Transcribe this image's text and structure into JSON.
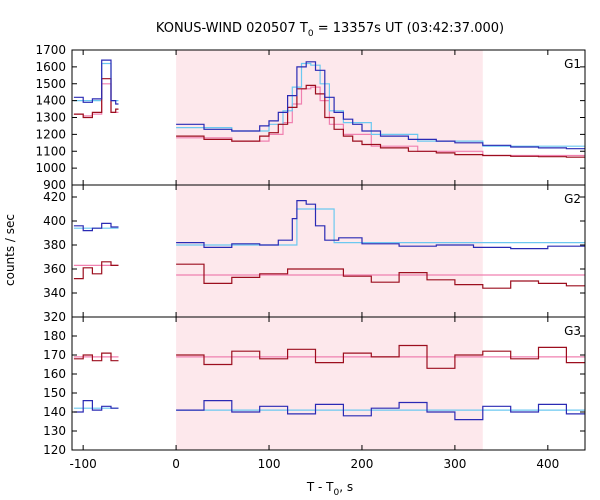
{
  "chart_data": {
    "type": "line",
    "title_main": "KONUS-WIND 020507 T",
    "title_sub": "0",
    "title_rest": " = 13357s UT (03:42:37.000)",
    "xlabel_main": "T - T",
    "xlabel_sub": "0",
    "xlabel_rest": ", s",
    "ylabel": "counts / sec",
    "xlim": [
      -112,
      440
    ],
    "x_ticks": [
      -100,
      0,
      100,
      200,
      300,
      400
    ],
    "x_tick_labels": [
      "-100",
      "0",
      "100",
      "200",
      "300",
      "400"
    ],
    "shaded_interval": [
      0,
      330
    ],
    "colors": {
      "shade": "#fde8ec",
      "observed_blue": "#2a2ab4",
      "observed_red": "#9c0e1e",
      "model_cyan": "#6cc8f0",
      "model_pink": "#f080b0"
    },
    "panels": [
      {
        "label": "G1",
        "ylim": [
          900,
          1700
        ],
        "y_ticks": [
          900,
          1000,
          1100,
          1200,
          1300,
          1400,
          1500,
          1600,
          1700
        ],
        "y_tick_labels": [
          "900",
          "1000",
          "1100",
          "1200",
          "1300",
          "1400",
          "1500",
          "1600",
          "1700"
        ],
        "blue": {
          "segments": [
            {
              "x": [
                -110,
                -100,
                -90,
                -80,
                -70,
                -65,
                -62
              ],
              "y": [
                1420,
                1390,
                1410,
                1640,
                1400,
                1380,
                1370
              ]
            },
            {
              "x": [
                0,
                30,
                60,
                90,
                100,
                110,
                120,
                130,
                140,
                150,
                160,
                170,
                180,
                190,
                200,
                220,
                250,
                280,
                300,
                330,
                360,
                390,
                420,
                440
              ],
              "y": [
                1260,
                1230,
                1220,
                1250,
                1280,
                1330,
                1430,
                1600,
                1630,
                1580,
                1420,
                1330,
                1290,
                1260,
                1220,
                1190,
                1170,
                1160,
                1150,
                1135,
                1125,
                1120,
                1115,
                1110
              ]
            }
          ]
        },
        "red": {
          "segments": [
            {
              "x": [
                -110,
                -100,
                -90,
                -80,
                -70,
                -65,
                -62
              ],
              "y": [
                1320,
                1300,
                1330,
                1530,
                1330,
                1350,
                1360
              ]
            },
            {
              "x": [
                0,
                30,
                60,
                90,
                100,
                110,
                120,
                130,
                140,
                150,
                160,
                170,
                180,
                190,
                200,
                220,
                250,
                280,
                300,
                330,
                360,
                390,
                420,
                440
              ],
              "y": [
                1190,
                1170,
                1160,
                1190,
                1210,
                1260,
                1360,
                1470,
                1490,
                1440,
                1300,
                1230,
                1190,
                1160,
                1140,
                1120,
                1100,
                1090,
                1080,
                1075,
                1070,
                1068,
                1065,
                1060
              ]
            }
          ]
        },
        "cyan": {
          "segments": [
            {
              "x": [
                -110,
                -100,
                -90,
                -80,
                -70,
                -62
              ],
              "y": [
                1400,
                1400,
                1400,
                1620,
                1400,
                1380
              ]
            },
            {
              "x": [
                0,
                60,
                100,
                115,
                125,
                135,
                145,
                155,
                165,
                180,
                210,
                260,
                330,
                440
              ],
              "y": [
                1240,
                1220,
                1260,
                1340,
                1480,
                1620,
                1610,
                1500,
                1340,
                1270,
                1200,
                1160,
                1130,
                1110
              ]
            }
          ]
        },
        "pink": {
          "segments": [
            {
              "x": [
                -110,
                -100,
                -90,
                -80,
                -70,
                -62
              ],
              "y": [
                1320,
                1310,
                1320,
                1500,
                1330,
                1360
              ]
            },
            {
              "x": [
                0,
                60,
                100,
                115,
                125,
                135,
                145,
                155,
                165,
                180,
                210,
                260,
                330,
                440
              ],
              "y": [
                1180,
                1160,
                1200,
                1270,
                1380,
                1470,
                1480,
                1400,
                1260,
                1200,
                1130,
                1100,
                1075,
                1060
              ]
            }
          ]
        }
      },
      {
        "label": "G2",
        "ylim": [
          320,
          430
        ],
        "y_ticks": [
          320,
          340,
          360,
          380,
          400,
          420
        ],
        "y_tick_labels": [
          "320",
          "340",
          "360",
          "380",
          "400",
          "420"
        ],
        "blue": {
          "segments": [
            {
              "x": [
                -110,
                -100,
                -90,
                -80,
                -70,
                -62
              ],
              "y": [
                396,
                392,
                394,
                398,
                395,
                394
              ]
            },
            {
              "x": [
                0,
                30,
                60,
                90,
                110,
                125,
                130,
                140,
                150,
                160,
                175,
                200,
                240,
                280,
                320,
                360,
                400,
                440
              ],
              "y": [
                382,
                378,
                381,
                380,
                384,
                402,
                417,
                414,
                396,
                384,
                386,
                381,
                379,
                380,
                378,
                377,
                379,
                380
              ]
            }
          ]
        },
        "red": {
          "segments": [
            {
              "x": [
                -110,
                -100,
                -90,
                -80,
                -70,
                -62
              ],
              "y": [
                352,
                361,
                356,
                366,
                363,
                365
              ]
            },
            {
              "x": [
                0,
                30,
                60,
                90,
                120,
                150,
                180,
                210,
                240,
                270,
                300,
                330,
                360,
                390,
                420,
                440
              ],
              "y": [
                364,
                348,
                353,
                356,
                360,
                360,
                354,
                349,
                357,
                351,
                347,
                344,
                350,
                348,
                346,
                349
              ]
            }
          ]
        },
        "cyan": {
          "segments": [
            {
              "x": [
                -110,
                -62
              ],
              "y": [
                394,
                394
              ]
            },
            {
              "x": [
                0,
                120,
                130,
                160,
                170,
                440
              ],
              "y": [
                380,
                380,
                410,
                410,
                382,
                376
              ]
            }
          ]
        },
        "pink": {
          "segments": [
            {
              "x": [
                -110,
                -62
              ],
              "y": [
                363,
                363
              ]
            },
            {
              "x": [
                0,
                440
              ],
              "y": [
                355,
                352
              ]
            }
          ]
        }
      },
      {
        "label": "G3",
        "ylim": [
          120,
          190
        ],
        "y_ticks": [
          120,
          130,
          140,
          150,
          160,
          170,
          180
        ],
        "y_tick_labels": [
          "120",
          "130",
          "140",
          "150",
          "160",
          "170",
          "180"
        ],
        "blue": {
          "segments": [
            {
              "x": [
                -110,
                -100,
                -90,
                -80,
                -70,
                -62
              ],
              "y": [
                140,
                146,
                141,
                143,
                142,
                141
              ]
            },
            {
              "x": [
                0,
                30,
                60,
                90,
                120,
                150,
                180,
                210,
                240,
                270,
                300,
                330,
                360,
                390,
                420,
                440
              ],
              "y": [
                141,
                146,
                140,
                143,
                139,
                144,
                138,
                142,
                145,
                140,
                136,
                143,
                140,
                144,
                139,
                142
              ]
            }
          ]
        },
        "red": {
          "segments": [
            {
              "x": [
                -110,
                -100,
                -90,
                -80,
                -70,
                -62
              ],
              "y": [
                168,
                170,
                167,
                171,
                167,
                166
              ]
            },
            {
              "x": [
                0,
                30,
                60,
                90,
                120,
                150,
                180,
                210,
                240,
                270,
                300,
                330,
                360,
                390,
                420,
                440
              ],
              "y": [
                170,
                165,
                172,
                168,
                173,
                166,
                171,
                169,
                175,
                163,
                170,
                172,
                168,
                174,
                166,
                170
              ]
            }
          ]
        },
        "cyan": {
          "segments": [
            {
              "x": [
                -110,
                -62
              ],
              "y": [
                142,
                142
              ]
            },
            {
              "x": [
                0,
                440
              ],
              "y": [
                141,
                141
              ]
            }
          ]
        },
        "pink": {
          "segments": [
            {
              "x": [
                -110,
                -62
              ],
              "y": [
                169,
                169
              ]
            },
            {
              "x": [
                0,
                440
              ],
              "y": [
                169,
                169
              ]
            }
          ]
        }
      }
    ]
  }
}
